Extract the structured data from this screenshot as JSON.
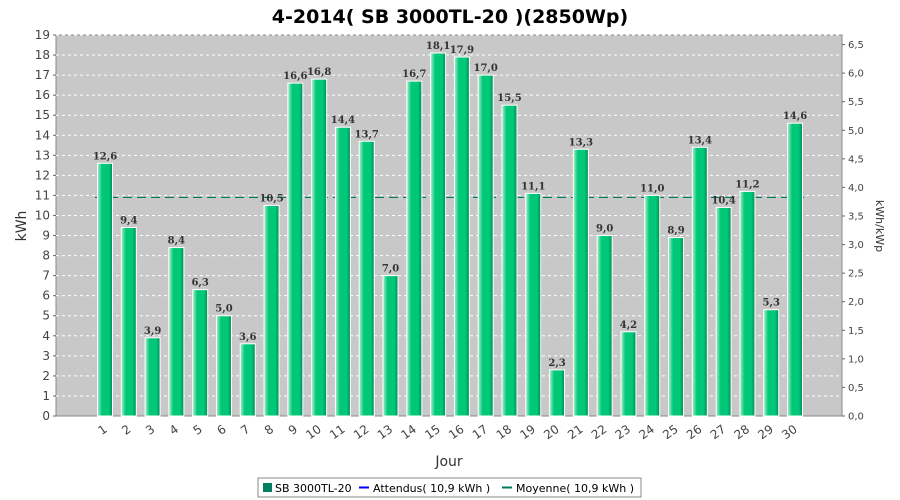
{
  "chart_data": {
    "type": "bar",
    "title": "4-2014( SB 3000TL-20 )(2850Wp)",
    "xlabel": "Jour",
    "ylabel": "kWh",
    "y2label": "kWh/kWp",
    "ylim": [
      0,
      19
    ],
    "y2lim": [
      0,
      6.6667
    ],
    "y_ticks": [
      "0",
      "1",
      "2",
      "3",
      "4",
      "5",
      "6",
      "7",
      "8",
      "9",
      "10",
      "11",
      "12",
      "13",
      "14",
      "15",
      "16",
      "17",
      "18",
      "19"
    ],
    "y2_ticks": [
      "0,0",
      "0,5",
      "1,0",
      "1,5",
      "2,0",
      "2,5",
      "3,0",
      "3,5",
      "4,0",
      "4,5",
      "5,0",
      "5,5",
      "6,0",
      "6,5"
    ],
    "categories": [
      "1",
      "2",
      "3",
      "4",
      "5",
      "6",
      "7",
      "8",
      "9",
      "10",
      "11",
      "12",
      "13",
      "14",
      "15",
      "16",
      "17",
      "18",
      "19",
      "20",
      "21",
      "22",
      "23",
      "24",
      "25",
      "26",
      "27",
      "28",
      "29",
      "30"
    ],
    "series": [
      {
        "name": "SB 3000TL-20",
        "color": "#00c878",
        "values": [
          12.6,
          9.4,
          3.9,
          8.4,
          6.3,
          5.0,
          3.6,
          10.5,
          16.6,
          16.8,
          14.4,
          13.7,
          7.0,
          16.7,
          18.1,
          17.9,
          17.0,
          15.5,
          11.1,
          2.3,
          13.3,
          9.0,
          4.2,
          11.0,
          8.9,
          13.4,
          10.4,
          11.2,
          5.3,
          14.6
        ],
        "labels": [
          "12,6",
          "9,4",
          "3,9",
          "8,4",
          "6,3",
          "5,0",
          "3,6",
          "10,5",
          "16,6",
          "16,8",
          "14,4",
          "13,7",
          "7,0",
          "16,7",
          "18,1",
          "17,9",
          "17,0",
          "15,5",
          "11,1",
          "2,3",
          "13,3",
          "9,0",
          "4,2",
          "11,0",
          "8,9",
          "13,4",
          "10,4",
          "11,2",
          "5,3",
          "14,6"
        ]
      }
    ],
    "average_line": {
      "value": 10.9,
      "color": "#007a5e"
    },
    "legend": {
      "placement": "bottom",
      "items": [
        {
          "label": "SB 3000TL-20",
          "color": "#008060",
          "marker": "square"
        },
        {
          "label": "Attendus( 10,9 kWh )",
          "color": "#0000ff",
          "marker": "line"
        },
        {
          "label": "Moyenne( 10,9 kWh )",
          "color": "#007a5e",
          "marker": "line"
        }
      ]
    },
    "grid": true,
    "plot_background": "#c8c8c8"
  }
}
